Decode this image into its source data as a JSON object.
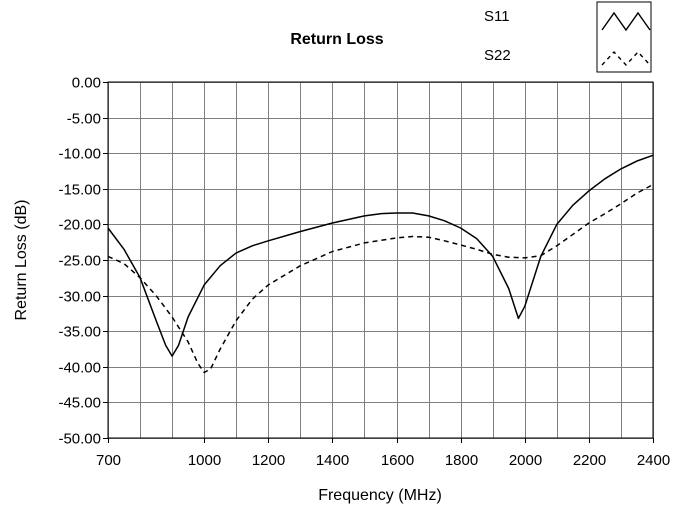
{
  "chart_data": {
    "type": "line",
    "title": "Return Loss",
    "xlabel": "Frequency (MHz)",
    "ylabel": "Return Loss (dB)",
    "xlim": [
      700,
      2400
    ],
    "ylim": [
      -50,
      0
    ],
    "x_ticks": [
      700,
      1000,
      1200,
      1400,
      1600,
      1800,
      2000,
      2200,
      2400
    ],
    "x_tick_labels": [
      "700",
      "1000",
      "1200",
      "1400",
      "1600",
      "1800",
      "2000",
      "2200",
      "2400"
    ],
    "x_grid": [
      700,
      800,
      900,
      1000,
      1100,
      1200,
      1300,
      1400,
      1500,
      1600,
      1700,
      1800,
      1900,
      2000,
      2100,
      2200,
      2300,
      2400
    ],
    "y_ticks": [
      0,
      -5,
      -10,
      -15,
      -20,
      -25,
      -30,
      -35,
      -40,
      -45,
      -50
    ],
    "y_tick_labels": [
      "0.00",
      "-5.00",
      "-10.00",
      "-15.00",
      "-20.00",
      "-25.00",
      "-30.00",
      "-35.00",
      "-40.00",
      "-45.00",
      "-50.00"
    ],
    "grid": true,
    "legend_position": "top-right",
    "colors": {
      "line": "#000000",
      "grid": "#808080",
      "background": "#ffffff"
    },
    "series": [
      {
        "name": "S11",
        "style": "solid",
        "x": [
          700,
          750,
          800,
          850,
          880,
          900,
          920,
          950,
          1000,
          1050,
          1100,
          1150,
          1200,
          1300,
          1400,
          1500,
          1550,
          1600,
          1650,
          1700,
          1750,
          1800,
          1850,
          1900,
          1950,
          1980,
          2000,
          2050,
          2100,
          2150,
          2200,
          2250,
          2300,
          2350,
          2400
        ],
        "y": [
          -20.5,
          -23.5,
          -27.5,
          -33.5,
          -37.0,
          -38.5,
          -37.0,
          -33.0,
          -28.5,
          -25.8,
          -24.0,
          -23.0,
          -22.3,
          -21.0,
          -19.8,
          -18.8,
          -18.5,
          -18.4,
          -18.4,
          -18.8,
          -19.5,
          -20.5,
          -22.0,
          -24.5,
          -29.0,
          -33.2,
          -31.5,
          -24.5,
          -20.0,
          -17.3,
          -15.3,
          -13.6,
          -12.2,
          -11.1,
          -10.3
        ]
      },
      {
        "name": "S22",
        "style": "dashed",
        "x": [
          700,
          750,
          800,
          850,
          900,
          950,
          980,
          1000,
          1020,
          1050,
          1100,
          1150,
          1200,
          1300,
          1400,
          1500,
          1600,
          1650,
          1700,
          1750,
          1800,
          1850,
          1900,
          1950,
          2000,
          2050,
          2100,
          2150,
          2200,
          2250,
          2300,
          2350,
          2400
        ],
        "y": [
          -24.5,
          -25.5,
          -27.5,
          -30.0,
          -33.0,
          -36.5,
          -39.5,
          -40.8,
          -40.3,
          -37.5,
          -33.5,
          -30.5,
          -28.5,
          -25.8,
          -23.8,
          -22.6,
          -21.9,
          -21.7,
          -21.8,
          -22.3,
          -22.9,
          -23.5,
          -24.2,
          -24.6,
          -24.7,
          -24.4,
          -23.0,
          -21.4,
          -19.8,
          -18.5,
          -17.1,
          -15.6,
          -14.4
        ]
      }
    ]
  }
}
